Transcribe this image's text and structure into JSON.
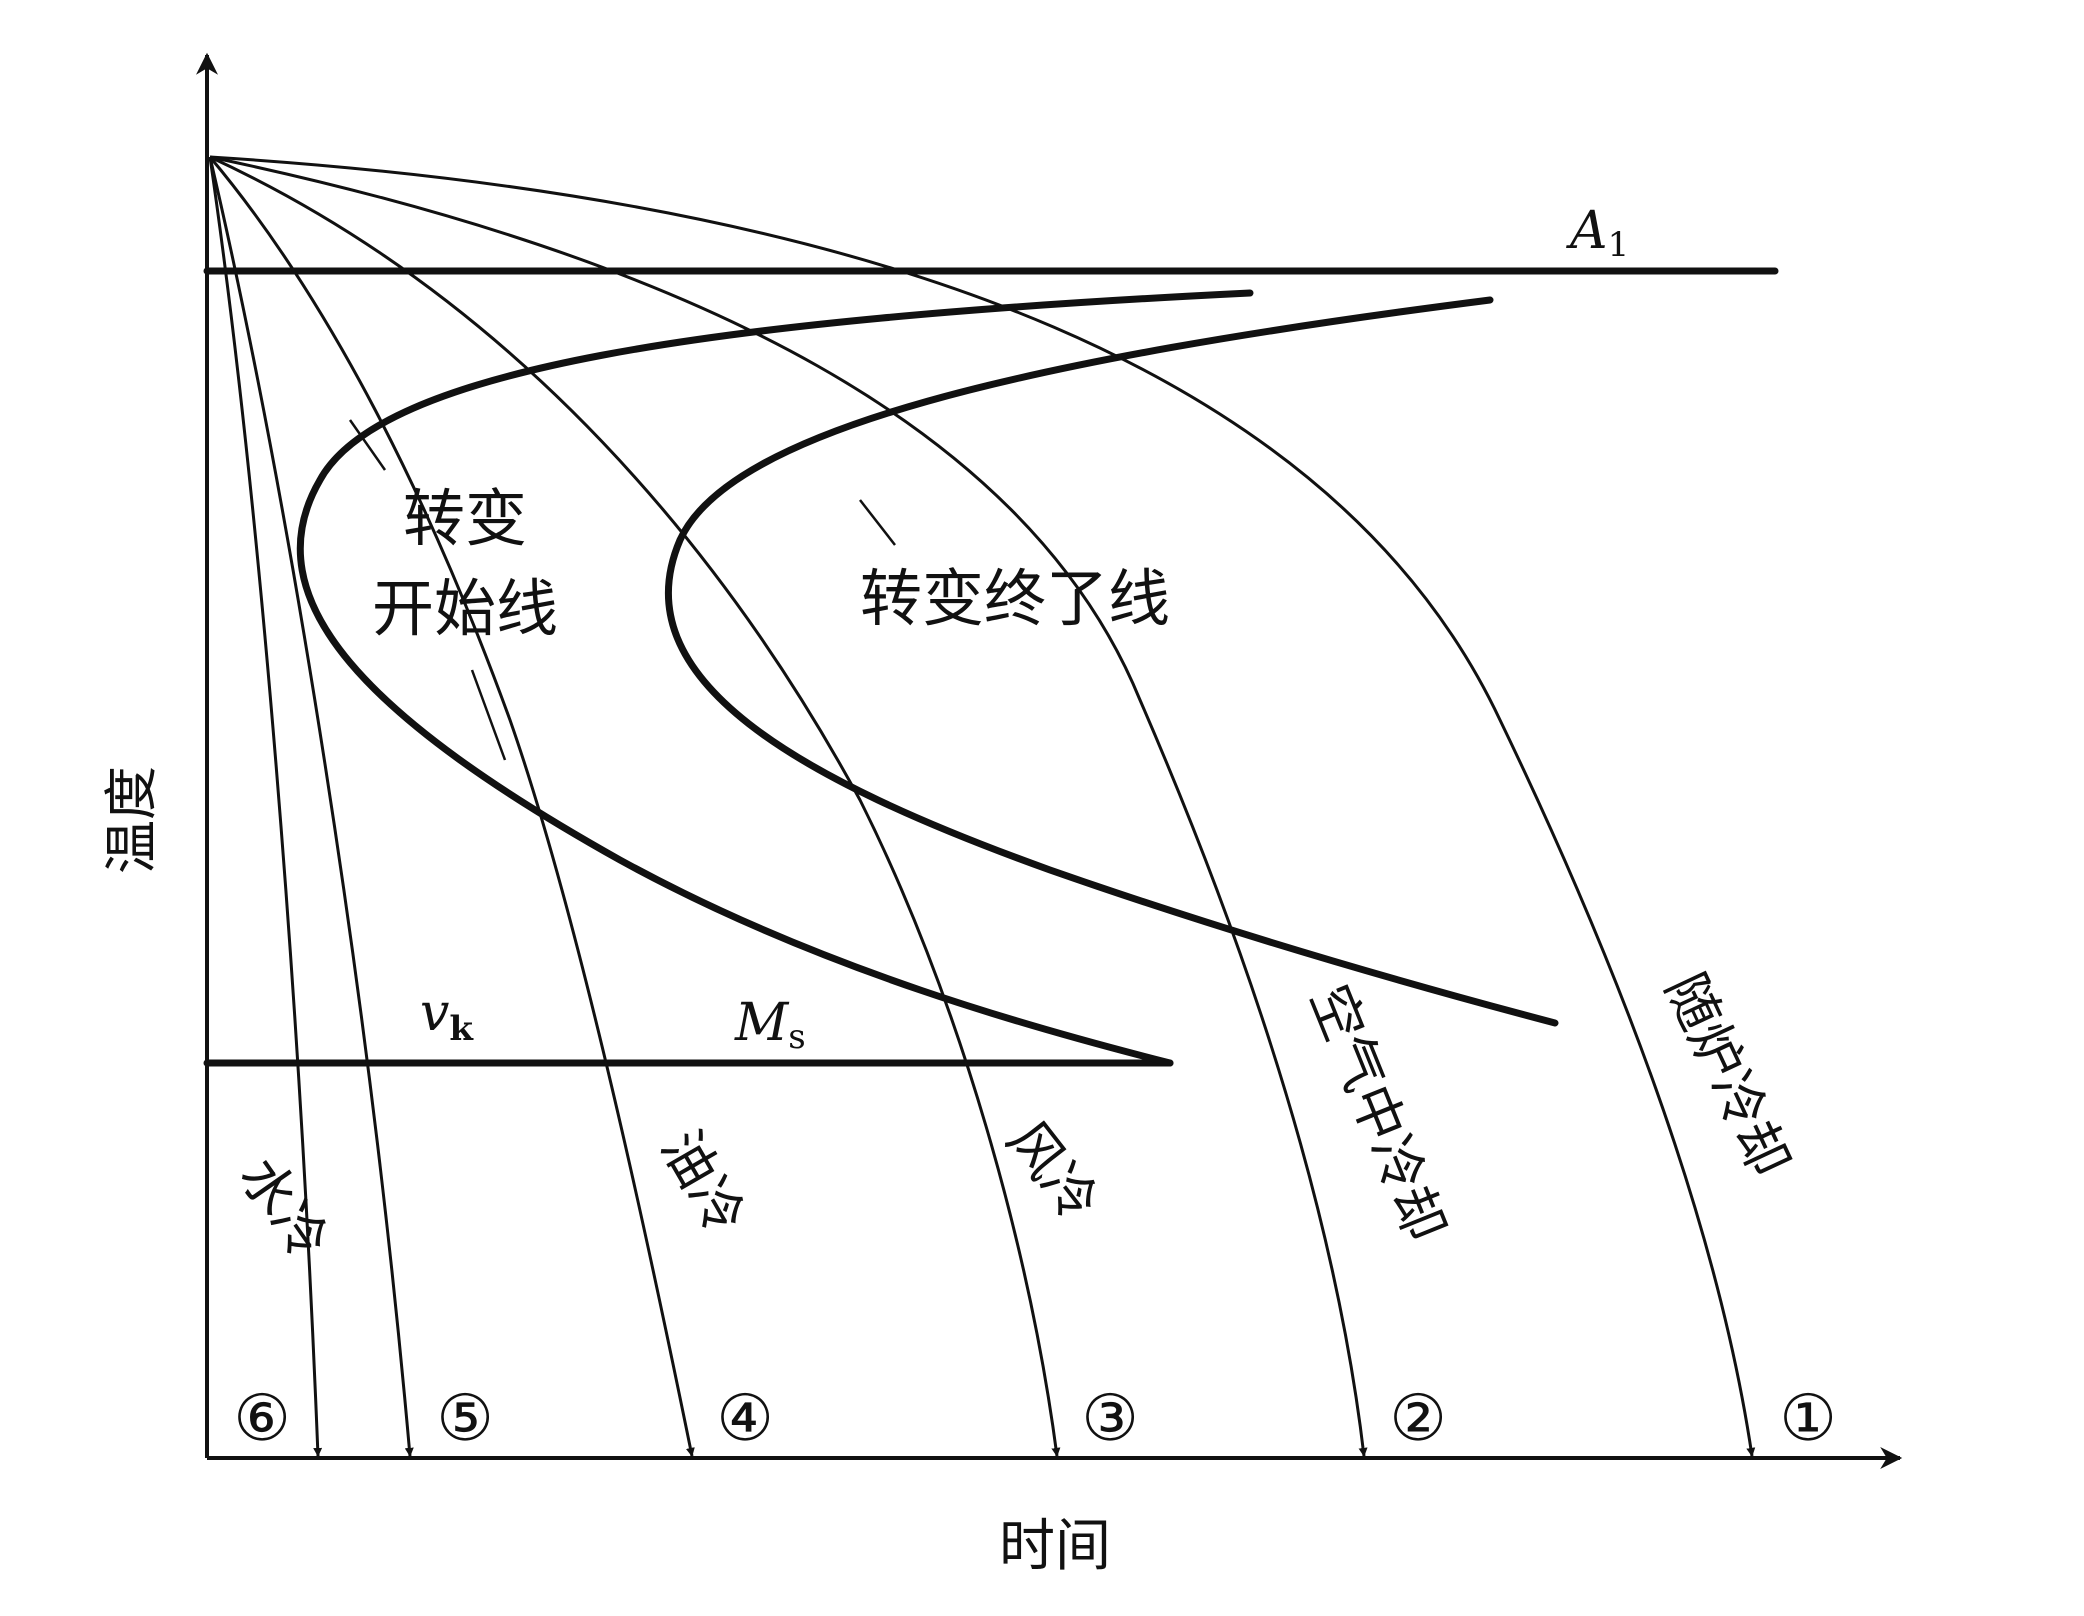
{
  "axes": {
    "y_label": "温度",
    "x_label": "时间"
  },
  "lines": {
    "a1_label": "A",
    "a1_sub": "1",
    "ms_label": "M",
    "ms_sub": "s",
    "vk_label": "v",
    "vk_sub": "k"
  },
  "regions": {
    "start_line_label_1": "转变",
    "start_line_label_2": "开始线",
    "end_line_label": "转变终了线"
  },
  "cooling_curves": [
    {
      "marker": "①",
      "label": "随炉冷却"
    },
    {
      "marker": "②",
      "label": "空气中冷却"
    },
    {
      "marker": "③",
      "label": "风冷"
    },
    {
      "marker": "④",
      "label": "油冷"
    },
    {
      "marker": "⑤",
      "label": ""
    },
    {
      "marker": "⑥",
      "label": "水冷"
    }
  ],
  "colors": {
    "ink": "#111111",
    "background": "#ffffff"
  }
}
